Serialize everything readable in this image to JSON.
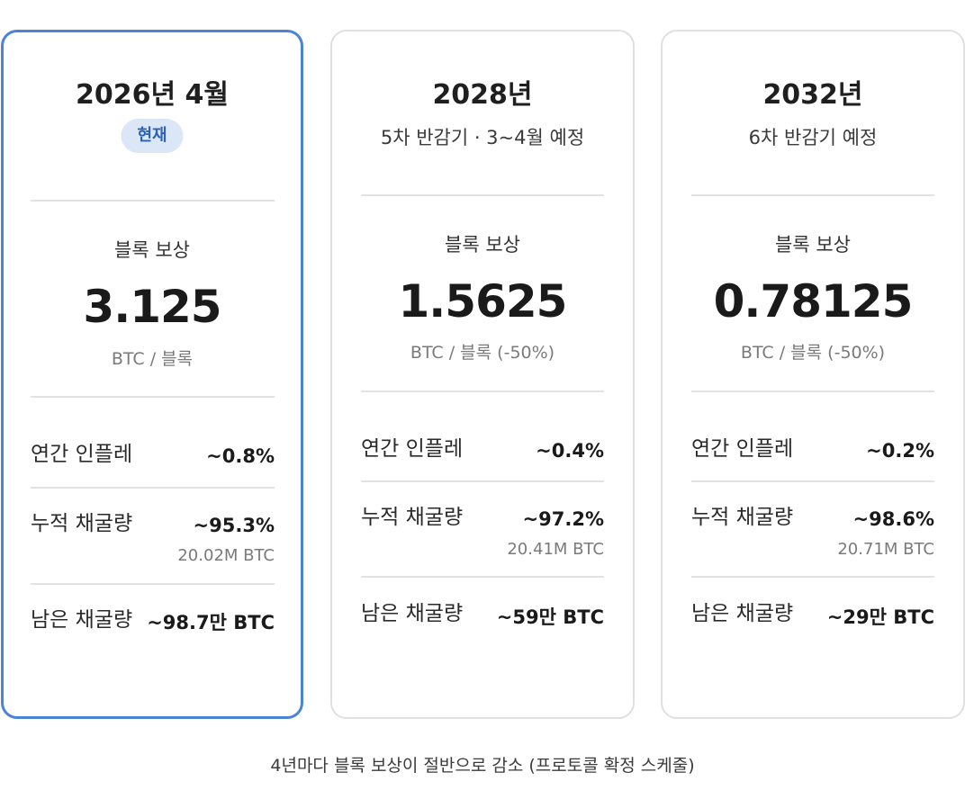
{
  "cards": [
    {
      "year": "2026년 4월",
      "badge": "현재",
      "reward_label": "블록 보상",
      "reward_value": "3.125",
      "reward_unit": "BTC / 블록",
      "inflation_label": "연간 인플레",
      "inflation_value": "~0.8%",
      "mined_label": "누적 채굴량",
      "mined_value": "~95.3%",
      "mined_sub": "20.02M BTC",
      "remaining_label": "남은 채굴량",
      "remaining_value": "~98.7만 BTC"
    },
    {
      "year": "2028년",
      "subtitle": "5차 반감기 · 3~4월 예정",
      "reward_label": "블록 보상",
      "reward_value": "1.5625",
      "reward_unit": "BTC / 블록 (-50%)",
      "inflation_label": "연간 인플레",
      "inflation_value": "~0.4%",
      "mined_label": "누적 채굴량",
      "mined_value": "~97.2%",
      "mined_sub": "20.41M BTC",
      "remaining_label": "남은 채굴량",
      "remaining_value": "~59만 BTC"
    },
    {
      "year": "2032년",
      "subtitle": "6차 반감기 예정",
      "reward_label": "블록 보상",
      "reward_value": "0.78125",
      "reward_unit": "BTC / 블록 (-50%)",
      "inflation_label": "연간 인플레",
      "inflation_value": "~0.2%",
      "mined_label": "누적 채굴량",
      "mined_value": "~98.6%",
      "mined_sub": "20.71M BTC",
      "remaining_label": "남은 채굴량",
      "remaining_value": "~29만 BTC"
    }
  ],
  "footer": "4년마다 블록 보상이 절반으로 감소 (프로토콜 확정 스케줄)",
  "colors": {
    "accent_border": "#4a84d4",
    "badge_bg": "#dbe6f6",
    "badge_text": "#2d62b0"
  }
}
